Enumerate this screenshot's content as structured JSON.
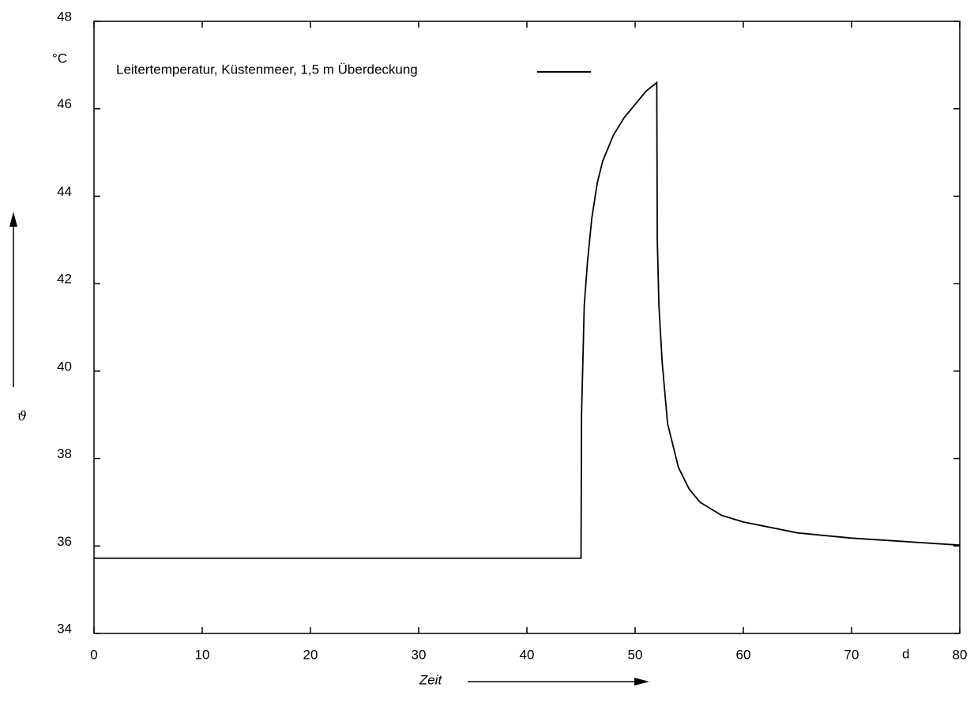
{
  "chart_data": {
    "type": "line",
    "xlabel": "Zeit",
    "ylabel": "ϑ",
    "y_unit": "°C",
    "x_unit": "d",
    "x": [
      0,
      10,
      20,
      30,
      40,
      45,
      45.05,
      45.3,
      45.6,
      46,
      46.5,
      47,
      48,
      49,
      50,
      51,
      52,
      52.05,
      52.2,
      52.5,
      53,
      54,
      55,
      56,
      58,
      60,
      65,
      70,
      75,
      80
    ],
    "series": [
      {
        "name": "Leitertemperatur, Küstenmeer, 1,5 m Überdeckung",
        "color": "#000000",
        "values": [
          35.72,
          35.72,
          35.72,
          35.72,
          35.72,
          35.72,
          39,
          41.5,
          42.5,
          43.5,
          44.3,
          44.8,
          45.4,
          45.8,
          46.1,
          46.4,
          46.6,
          43,
          41.5,
          40.2,
          38.8,
          37.8,
          37.3,
          37.0,
          36.7,
          36.55,
          36.3,
          36.18,
          36.1,
          36.02
        ]
      }
    ],
    "xlim": [
      0,
      80
    ],
    "ylim": [
      34,
      48
    ],
    "xticks": [
      0,
      10,
      20,
      30,
      40,
      50,
      60,
      70,
      80
    ],
    "yticks": [
      34,
      36,
      38,
      40,
      42,
      44,
      46,
      48
    ]
  }
}
